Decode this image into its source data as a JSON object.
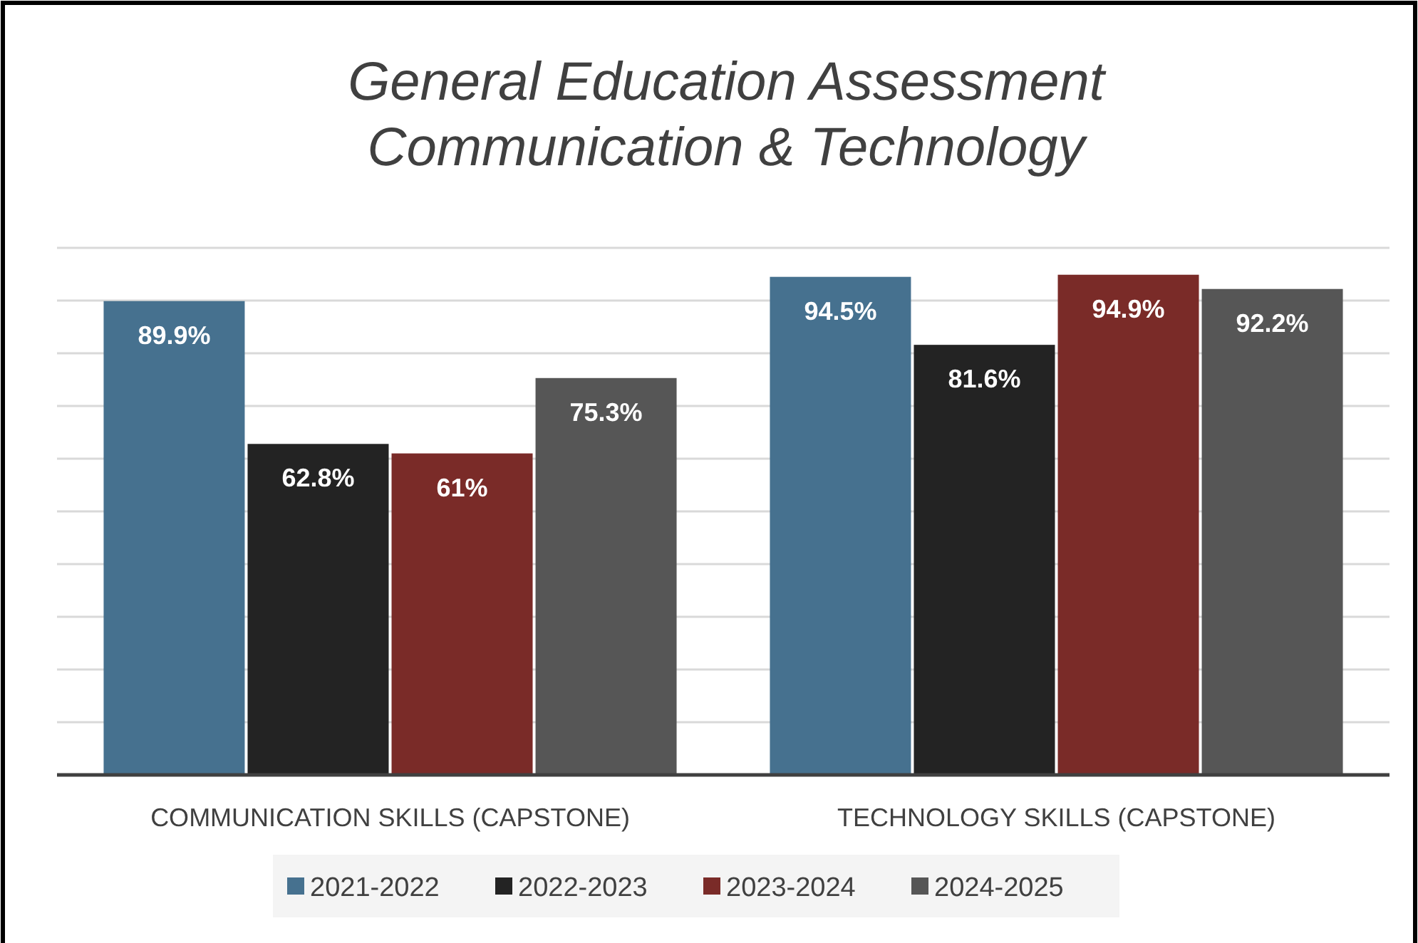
{
  "chart_data": {
    "type": "bar",
    "title": "General Education Assessment\nCommunication & Technology",
    "categories": [
      "COMMUNICATION SKILLS (CAPSTONE)",
      "TECHNOLOGY SKILLS (CAPSTONE)"
    ],
    "series": [
      {
        "name": "2021-2022",
        "color": "#46718f",
        "values": [
          89.9,
          94.5
        ],
        "value_labels": [
          "89.9%",
          "94.5%"
        ]
      },
      {
        "name": "2022-2023",
        "color": "#232323",
        "values": [
          62.8,
          81.6
        ],
        "value_labels": [
          "62.8%",
          "81.6%"
        ]
      },
      {
        "name": "2023-2024",
        "color": "#7a2b28",
        "values": [
          61,
          94.9
        ],
        "value_labels": [
          "61%",
          "94.9%"
        ]
      },
      {
        "name": "2024-2025",
        "color": "#565656",
        "values": [
          75.3,
          92.2
        ],
        "value_labels": [
          "75.3%",
          "92.2%"
        ]
      }
    ],
    "ylim": [
      0,
      100
    ],
    "yticks": [
      {
        "value": 0,
        "label": null
      },
      {
        "value": 10,
        "label": null
      },
      {
        "value": 20,
        "label": null
      },
      {
        "value": 30,
        "label": null
      },
      {
        "value": 40,
        "label": null
      },
      {
        "value": 50,
        "label": null
      },
      {
        "value": 60,
        "label": null
      },
      {
        "value": 70,
        "label": null
      },
      {
        "value": 80,
        "label": null
      },
      {
        "value": 90,
        "label": null
      },
      {
        "value": 100,
        "label": null
      }
    ],
    "grid": "y",
    "legend": "bottom",
    "tick_labels": "x"
  }
}
